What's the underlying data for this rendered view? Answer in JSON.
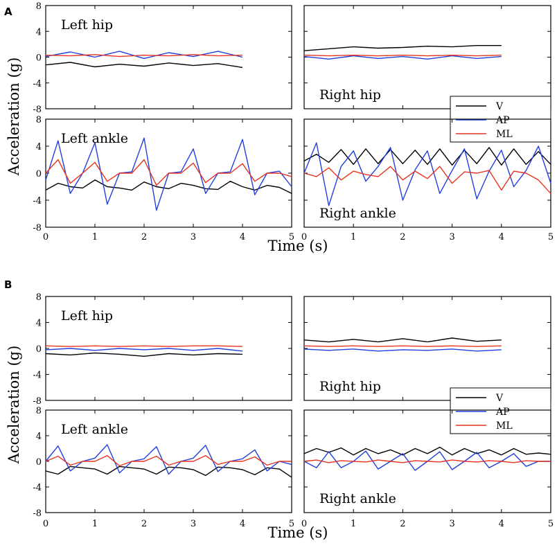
{
  "chart_data": [
    {
      "type": "line",
      "panel_label": "A",
      "ylabel": "Acceleration (g)",
      "xlabel": "Time (s)",
      "xlim": [
        0,
        5
      ],
      "ylim": [
        -8,
        8
      ],
      "xticks": [
        "0",
        "1",
        "2",
        "3",
        "4",
        "5"
      ],
      "yticks": [
        "8",
        "4",
        "0",
        "-4",
        "-8"
      ],
      "legend": {
        "position": "right-hip panel, lower-right",
        "entries": [
          {
            "name": "V",
            "color": "#000000"
          },
          {
            "name": "AP",
            "color": "#1f3fe0"
          },
          {
            "name": "ML",
            "color": "#e8321e"
          }
        ]
      },
      "subplots": [
        {
          "title": "Left hip",
          "title_position": "top-left",
          "step": 0.5,
          "series": [
            {
              "name": "V",
              "color": "#000000",
              "values": [
                -1.2,
                -0.8,
                -1.5,
                -1.1,
                -1.4,
                -0.9,
                -1.3,
                -1.0,
                -1.6
              ]
            },
            {
              "name": "AP",
              "color": "#1f3fe0",
              "values": [
                0.1,
                0.8,
                0.0,
                0.9,
                -0.2,
                0.7,
                0.1,
                0.9,
                0.0
              ]
            },
            {
              "name": "ML",
              "color": "#e8321e",
              "values": [
                0.3,
                0.2,
                0.4,
                0.1,
                0.3,
                0.2,
                0.4,
                0.2,
                0.3
              ]
            }
          ]
        },
        {
          "title": "Right hip",
          "title_position": "bottom-left",
          "step": 0.5,
          "series": [
            {
              "name": "V",
              "color": "#000000",
              "values": [
                1.0,
                1.3,
                1.6,
                1.4,
                1.5,
                1.7,
                1.6,
                1.8,
                1.8
              ]
            },
            {
              "name": "AP",
              "color": "#1f3fe0",
              "values": [
                0.1,
                -0.3,
                0.2,
                -0.2,
                0.1,
                -0.3,
                0.2,
                -0.2,
                0.1
              ]
            },
            {
              "name": "ML",
              "color": "#e8321e",
              "values": [
                0.3,
                0.2,
                0.3,
                0.2,
                0.3,
                0.2,
                0.3,
                0.2,
                0.3
              ]
            }
          ]
        },
        {
          "title": "Left ankle",
          "title_position": "top-left",
          "step": 0.25,
          "series": [
            {
              "name": "V",
              "color": "#000000",
              "values": [
                -2.5,
                -1.5,
                -2.0,
                -2.2,
                -1.0,
                -2.0,
                -2.2,
                -2.5,
                -1.3,
                -2.0,
                -2.3,
                -1.5,
                -1.8,
                -2.3,
                -2.4,
                -1.2,
                -2.0,
                -2.5,
                -1.8,
                -2.1,
                -3.0
              ]
            },
            {
              "name": "AP",
              "color": "#1f3fe0",
              "values": [
                -1.0,
                4.8,
                -3.0,
                0.0,
                4.5,
                -4.6,
                0.0,
                0.2,
                5.2,
                -5.5,
                0.0,
                0.2,
                3.6,
                -3.0,
                0.0,
                0.2,
                5.0,
                -3.2,
                0.0,
                0.3,
                -2.0
              ]
            },
            {
              "name": "ML",
              "color": "#e8321e",
              "values": [
                0.0,
                2.0,
                -1.5,
                0.0,
                1.6,
                -1.2,
                0.0,
                0.0,
                2.0,
                -1.8,
                0.0,
                0.0,
                1.5,
                -1.4,
                0.0,
                0.0,
                1.4,
                -1.2,
                0.0,
                0.0,
                -0.5
              ]
            }
          ]
        },
        {
          "title": "Right ankle",
          "title_position": "bottom-left",
          "step": 0.25,
          "series": [
            {
              "name": "V",
              "color": "#000000",
              "values": [
                1.8,
                2.8,
                1.6,
                3.5,
                1.3,
                3.6,
                1.4,
                3.5,
                1.4,
                3.4,
                1.3,
                3.6,
                1.2,
                3.4,
                1.4,
                3.8,
                1.2,
                3.6,
                1.3,
                3.2,
                1.3
              ]
            },
            {
              "name": "AP",
              "color": "#1f3fe0",
              "values": [
                0.0,
                4.5,
                -4.8,
                1.0,
                3.3,
                -1.2,
                1.0,
                3.8,
                -4.0,
                0.5,
                3.3,
                -3.0,
                0.4,
                3.6,
                -3.8,
                0.3,
                3.4,
                -2.0,
                0.4,
                4.0,
                -1.5
              ]
            },
            {
              "name": "ML",
              "color": "#e8321e",
              "values": [
                0.0,
                -0.5,
                0.8,
                -1.0,
                0.3,
                -0.2,
                -0.5,
                1.0,
                -1.0,
                0.3,
                -0.8,
                1.0,
                -1.5,
                0.2,
                0.0,
                0.4,
                -2.5,
                0.3,
                0.0,
                -1.0,
                -3.0
              ]
            }
          ]
        }
      ]
    },
    {
      "type": "line",
      "panel_label": "B",
      "ylabel": "Acceleration (g)",
      "xlabel": "Time (s)",
      "xlim": [
        0,
        5
      ],
      "ylim": [
        -8,
        8
      ],
      "xticks": [
        "0",
        "1",
        "2",
        "3",
        "4",
        "5"
      ],
      "yticks": [
        "8",
        "4",
        "0",
        "-4",
        "-8"
      ],
      "legend": {
        "position": "right-hip panel, lower-right",
        "entries": [
          {
            "name": "V",
            "color": "#000000"
          },
          {
            "name": "AP",
            "color": "#1f3fe0"
          },
          {
            "name": "ML",
            "color": "#e8321e"
          }
        ]
      },
      "subplots": [
        {
          "title": "Left hip",
          "title_position": "top-left",
          "step": 0.5,
          "series": [
            {
              "name": "V",
              "color": "#000000",
              "values": [
                -0.8,
                -1.0,
                -0.7,
                -0.9,
                -1.2,
                -0.8,
                -1.0,
                -0.8,
                -0.9
              ]
            },
            {
              "name": "AP",
              "color": "#1f3fe0",
              "values": [
                -0.2,
                0.0,
                -0.3,
                0.0,
                -0.2,
                0.0,
                -0.3,
                0.0,
                -0.4
              ]
            },
            {
              "name": "ML",
              "color": "#e8321e",
              "values": [
                0.4,
                0.3,
                0.4,
                0.3,
                0.4,
                0.3,
                0.4,
                0.4,
                0.3
              ]
            }
          ]
        },
        {
          "title": "Right hip",
          "title_position": "bottom-left",
          "step": 0.5,
          "series": [
            {
              "name": "V",
              "color": "#000000",
              "values": [
                1.3,
                1.0,
                1.4,
                1.0,
                1.5,
                1.0,
                1.6,
                1.1,
                1.3
              ]
            },
            {
              "name": "AP",
              "color": "#1f3fe0",
              "values": [
                -0.1,
                -0.3,
                -0.1,
                -0.4,
                -0.2,
                -0.3,
                -0.1,
                -0.4,
                -0.2
              ]
            },
            {
              "name": "ML",
              "color": "#e8321e",
              "values": [
                0.4,
                0.3,
                0.4,
                0.3,
                0.4,
                0.3,
                0.4,
                0.3,
                0.4
              ]
            }
          ]
        },
        {
          "title": "Left ankle",
          "title_position": "top-left",
          "step": 0.25,
          "series": [
            {
              "name": "V",
              "color": "#000000",
              "values": [
                -1.5,
                -2.0,
                -0.8,
                -1.0,
                -1.2,
                -2.0,
                -0.8,
                -1.0,
                -1.2,
                -2.0,
                -0.9,
                -1.0,
                -1.3,
                -2.2,
                -0.9,
                -1.0,
                -1.3,
                -2.1,
                -1.0,
                -1.2,
                -2.5
              ]
            },
            {
              "name": "AP",
              "color": "#1f3fe0",
              "values": [
                0.0,
                2.4,
                -1.5,
                0.0,
                0.5,
                2.6,
                -1.8,
                0.0,
                0.4,
                2.3,
                -2.0,
                0.0,
                0.5,
                2.5,
                -1.6,
                0.0,
                0.4,
                1.8,
                -1.5,
                0.0,
                -0.5
              ]
            },
            {
              "name": "ML",
              "color": "#e8321e",
              "values": [
                0.0,
                0.8,
                -0.6,
                0.0,
                0.0,
                0.9,
                -0.7,
                0.0,
                0.0,
                0.8,
                -0.6,
                0.0,
                0.0,
                0.9,
                -0.5,
                0.0,
                0.0,
                0.7,
                -0.6,
                0.0,
                0.0
              ]
            }
          ]
        },
        {
          "title": "Right ankle",
          "title_position": "bottom-left",
          "step": 0.25,
          "series": [
            {
              "name": "V",
              "color": "#000000",
              "values": [
                1.2,
                2.0,
                1.4,
                2.1,
                1.0,
                2.0,
                1.2,
                1.8,
                1.0,
                2.0,
                1.2,
                2.2,
                1.0,
                2.0,
                1.2,
                1.8,
                1.0,
                2.0,
                1.1,
                1.3,
                1.1
              ]
            },
            {
              "name": "AP",
              "color": "#1f3fe0",
              "values": [
                0.0,
                -1.0,
                1.5,
                -1.0,
                0.0,
                1.6,
                -1.2,
                0.0,
                1.2,
                -1.4,
                0.0,
                1.5,
                -1.3,
                0.0,
                1.4,
                -1.0,
                0.0,
                1.2,
                -0.8,
                0.0,
                0.0
              ]
            },
            {
              "name": "ML",
              "color": "#e8321e",
              "values": [
                0.0,
                0.2,
                -0.2,
                0.1,
                0.0,
                -0.1,
                0.2,
                0.0,
                -0.2,
                0.1,
                0.0,
                -0.1,
                0.2,
                0.0,
                -0.1,
                0.1,
                0.0,
                -0.2,
                0.1,
                0.0,
                0.0
              ]
            }
          ]
        }
      ]
    }
  ]
}
